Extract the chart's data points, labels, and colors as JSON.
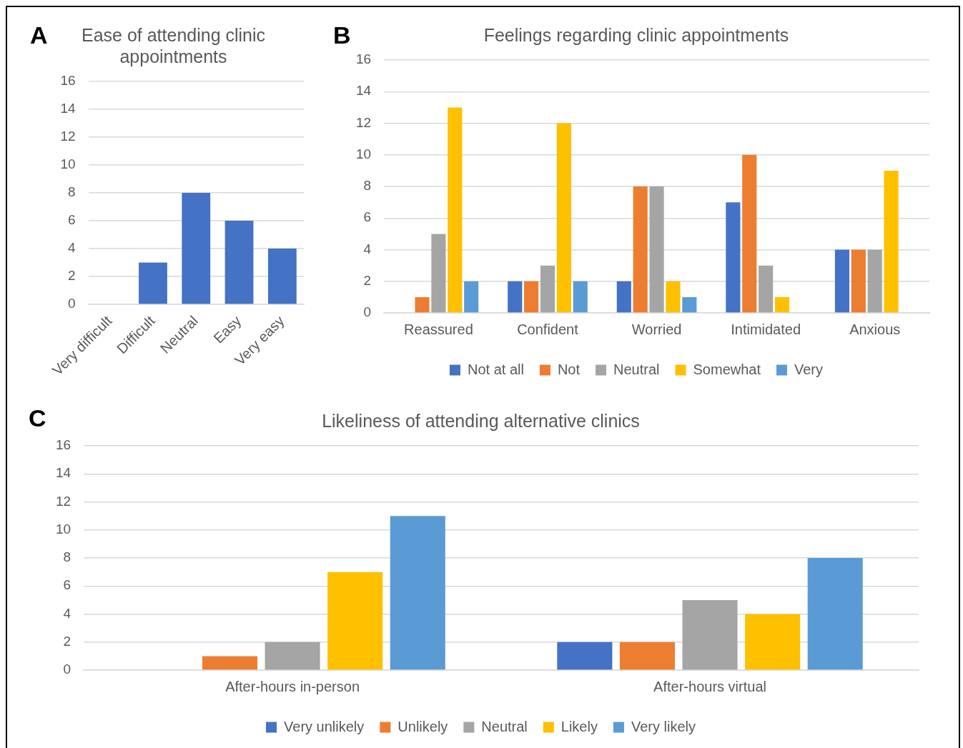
{
  "chart_data": [
    {
      "type": "bar",
      "title": "Ease of attending clinic appointments",
      "annotations": [
        "A"
      ],
      "categories": [
        "Very difficult",
        "Difficult",
        "Neutral",
        "Easy",
        "Very easy"
      ],
      "values": [
        0,
        3,
        8,
        6,
        4
      ],
      "color": "#4472c4",
      "ylim": [
        0,
        16
      ],
      "yticks": [
        0,
        2,
        4,
        6,
        8,
        10,
        12,
        14,
        16
      ],
      "grid": "y",
      "legend": false
    },
    {
      "type": "bar",
      "title": "Feelings regarding clinic appointments",
      "annotations": [
        "B"
      ],
      "categories": [
        "Reassured",
        "Confident",
        "Worried",
        "Intimidated",
        "Anxious"
      ],
      "series": [
        {
          "name": "Not at all",
          "color": "#4472c4",
          "values": [
            0,
            2,
            2,
            7,
            4
          ]
        },
        {
          "name": "Not",
          "color": "#ed7d31",
          "values": [
            1,
            2,
            8,
            10,
            4
          ]
        },
        {
          "name": "Neutral",
          "color": "#a5a5a5",
          "values": [
            5,
            3,
            8,
            3,
            4
          ]
        },
        {
          "name": "Somewhat",
          "color": "#ffc000",
          "values": [
            13,
            12,
            2,
            1,
            9
          ]
        },
        {
          "name": "Very",
          "color": "#5b9bd5",
          "values": [
            2,
            2,
            1,
            0,
            0
          ]
        }
      ],
      "ylim": [
        0,
        16
      ],
      "yticks": [
        0,
        2,
        4,
        6,
        8,
        10,
        12,
        14,
        16
      ],
      "grid": "y",
      "legend": "bottom"
    },
    {
      "type": "bar",
      "title": "Likeliness of attending alternative clinics",
      "annotations": [
        "C"
      ],
      "categories": [
        "After-hours in-person",
        "After-hours virtual"
      ],
      "series": [
        {
          "name": "Very unlikely",
          "color": "#4472c4",
          "values": [
            0,
            2
          ]
        },
        {
          "name": "Unlikely",
          "color": "#ed7d31",
          "values": [
            1,
            2
          ]
        },
        {
          "name": "Neutral",
          "color": "#a5a5a5",
          "values": [
            2,
            5
          ]
        },
        {
          "name": "Likely",
          "color": "#ffc000",
          "values": [
            7,
            4
          ]
        },
        {
          "name": "Very likely",
          "color": "#5b9bd5",
          "values": [
            11,
            8
          ]
        }
      ],
      "ylim": [
        0,
        16
      ],
      "yticks": [
        0,
        2,
        4,
        6,
        8,
        10,
        12,
        14,
        16
      ],
      "grid": "y",
      "legend": "bottom"
    }
  ]
}
